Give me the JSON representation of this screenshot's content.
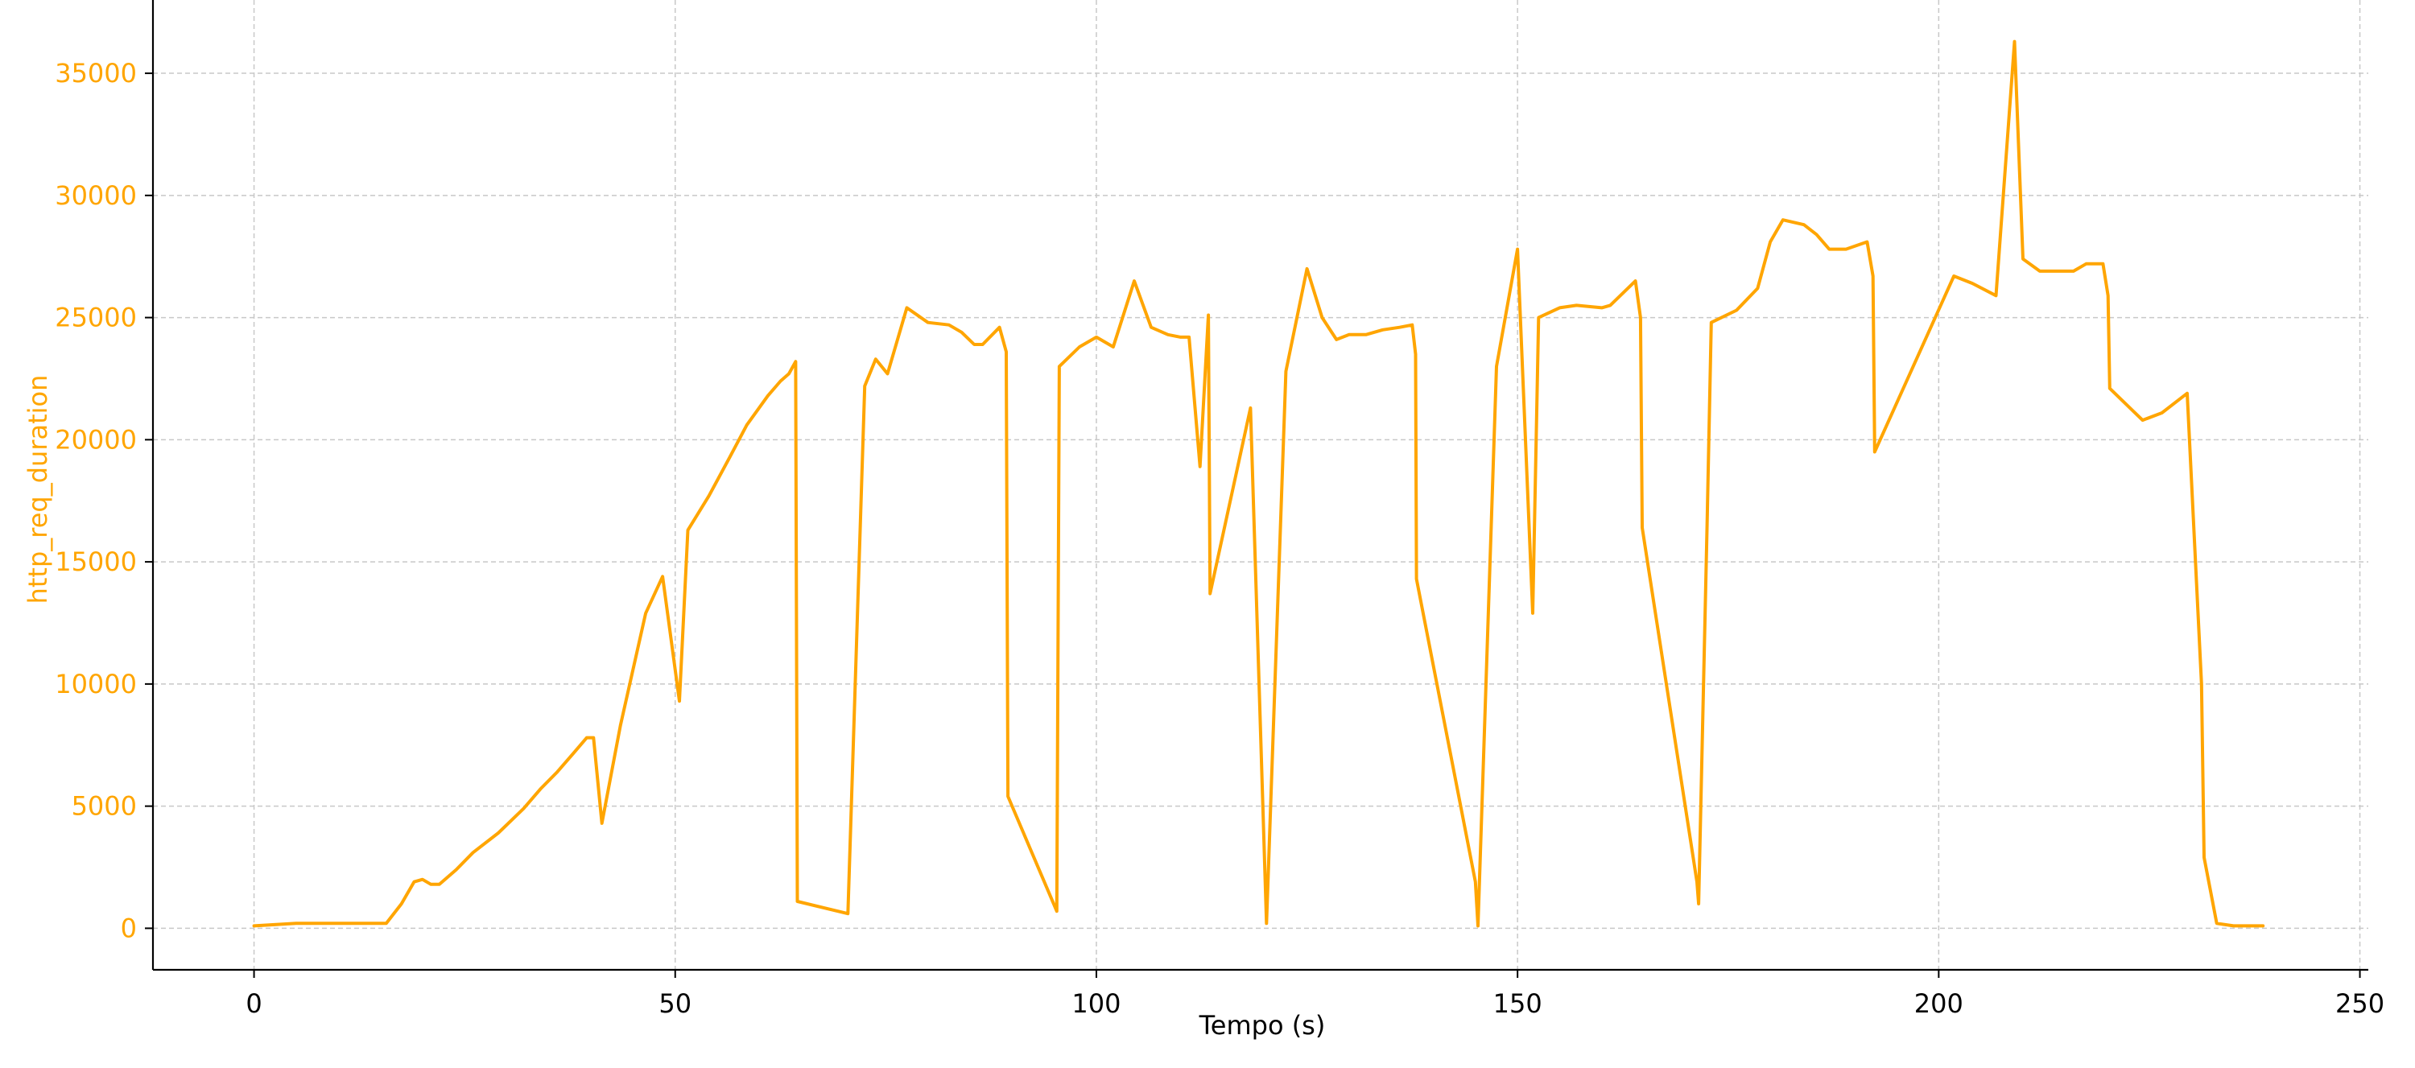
{
  "chart_data": {
    "type": "line",
    "title": "",
    "xlabel": "Tempo (s)",
    "ylabel": "http_req_duration",
    "xlim": [
      -12,
      251
    ],
    "ylim": [
      -1700,
      38000
    ],
    "xticks": [
      0,
      50,
      100,
      150,
      200,
      250
    ],
    "yticks": [
      0,
      5000,
      10000,
      15000,
      20000,
      25000,
      30000,
      35000
    ],
    "grid": true,
    "colors": {
      "series": "#FFA500",
      "ylabel": "#FFA500",
      "yticks": "#FFA500",
      "axis": "#000000",
      "grid": "#c8c8c8"
    },
    "series": [
      {
        "points": [
          [
            0,
            100
          ],
          [
            5,
            200
          ],
          [
            10,
            200
          ],
          [
            15.7,
            200
          ],
          [
            17.5,
            1000
          ],
          [
            19,
            1900
          ],
          [
            20,
            2000
          ],
          [
            21,
            1800
          ],
          [
            22,
            1800
          ],
          [
            24,
            2400
          ],
          [
            26,
            3100
          ],
          [
            29,
            3900
          ],
          [
            32,
            4900
          ],
          [
            34,
            5700
          ],
          [
            36,
            6400
          ],
          [
            38,
            7200
          ],
          [
            39.5,
            7800
          ],
          [
            40.3,
            7800
          ],
          [
            41.3,
            4300
          ],
          [
            43.5,
            8300
          ],
          [
            46.5,
            12900
          ],
          [
            48.5,
            14400
          ],
          [
            50.5,
            9300
          ],
          [
            51.5,
            16300
          ],
          [
            54,
            17700
          ],
          [
            56.5,
            19300
          ],
          [
            58.5,
            20600
          ],
          [
            61,
            21800
          ],
          [
            62.5,
            22400
          ],
          [
            63.5,
            22700
          ],
          [
            64.3,
            23200
          ],
          [
            64.5,
            1100
          ],
          [
            70.5,
            600
          ],
          [
            72.5,
            22200
          ],
          [
            73.8,
            23300
          ],
          [
            75.2,
            22700
          ],
          [
            77.5,
            25400
          ],
          [
            80,
            24800
          ],
          [
            82.5,
            24700
          ],
          [
            84,
            24400
          ],
          [
            85.5,
            23900
          ],
          [
            86.5,
            23900
          ],
          [
            88.5,
            24600
          ],
          [
            89.3,
            23600
          ],
          [
            89.5,
            5400
          ],
          [
            95.3,
            700
          ],
          [
            95.6,
            23000
          ],
          [
            98,
            23800
          ],
          [
            100,
            24200
          ],
          [
            102,
            23800
          ],
          [
            104.5,
            26500
          ],
          [
            106.5,
            24600
          ],
          [
            108.5,
            24300
          ],
          [
            110,
            24200
          ],
          [
            111,
            24200
          ],
          [
            112.3,
            18900
          ],
          [
            113.3,
            25100
          ],
          [
            113.5,
            13700
          ],
          [
            118.3,
            21300
          ],
          [
            120.2,
            200
          ],
          [
            122.5,
            22800
          ],
          [
            125,
            27000
          ],
          [
            126.8,
            25000
          ],
          [
            128.5,
            24100
          ],
          [
            130,
            24300
          ],
          [
            132,
            24300
          ],
          [
            134,
            24500
          ],
          [
            136,
            24600
          ],
          [
            137.5,
            24700
          ],
          [
            137.9,
            23500
          ],
          [
            138,
            14300
          ],
          [
            145,
            1900
          ],
          [
            145.3,
            100
          ],
          [
            147.5,
            23000
          ],
          [
            150,
            27800
          ],
          [
            151.8,
            12900
          ],
          [
            152.5,
            25000
          ],
          [
            155,
            25400
          ],
          [
            157,
            25500
          ],
          [
            160,
            25400
          ],
          [
            161,
            25500
          ],
          [
            164,
            26500
          ],
          [
            164.6,
            25000
          ],
          [
            164.8,
            16400
          ],
          [
            171.3,
            1900
          ],
          [
            171.5,
            1000
          ],
          [
            172.5,
            16500
          ],
          [
            173,
            24800
          ],
          [
            176,
            25300
          ],
          [
            178.5,
            26200
          ],
          [
            180,
            28100
          ],
          [
            181.5,
            29000
          ],
          [
            184,
            28800
          ],
          [
            185.5,
            28400
          ],
          [
            187,
            27800
          ],
          [
            189,
            27800
          ],
          [
            191.5,
            28100
          ],
          [
            192.2,
            26700
          ],
          [
            192.4,
            19500
          ],
          [
            201.8,
            26700
          ],
          [
            204,
            26400
          ],
          [
            206.8,
            25900
          ],
          [
            209,
            36300
          ],
          [
            210,
            27400
          ],
          [
            212,
            26900
          ],
          [
            216,
            26900
          ],
          [
            217.5,
            27200
          ],
          [
            219.5,
            27200
          ],
          [
            220.1,
            25900
          ],
          [
            220.3,
            22100
          ],
          [
            224.2,
            20800
          ],
          [
            226.5,
            21100
          ],
          [
            229.5,
            21900
          ],
          [
            231.2,
            10000
          ],
          [
            231.5,
            2900
          ],
          [
            233,
            200
          ],
          [
            235,
            100
          ],
          [
            238.5,
            100
          ]
        ]
      }
    ]
  }
}
